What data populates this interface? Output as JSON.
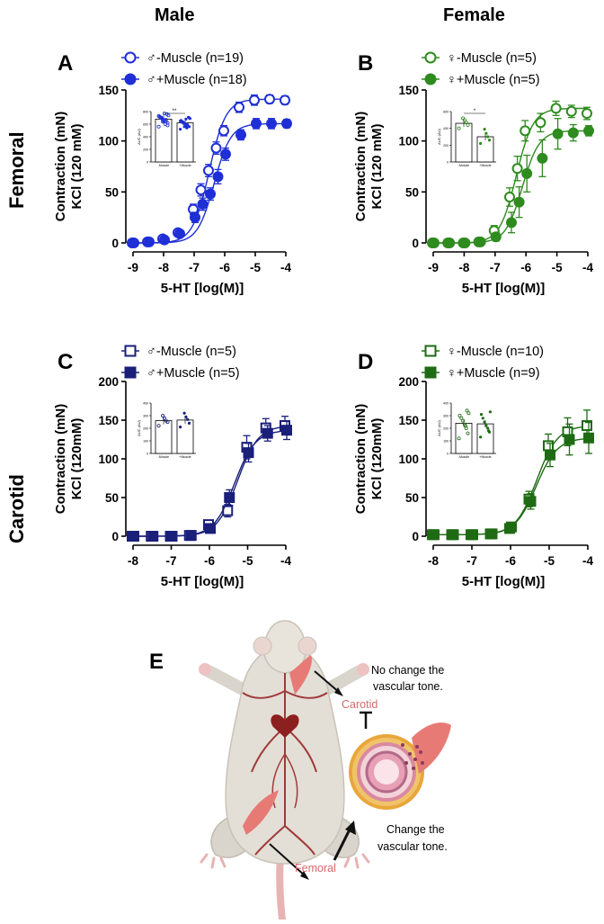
{
  "column_titles": {
    "male": "Male",
    "female": "Female"
  },
  "row_titles": {
    "femoral": "Femoral",
    "carotid": "Carotid"
  },
  "panel_E": {
    "letter": "E",
    "carotid_label": "Carotid",
    "femoral_label": "Femoral",
    "no_change_text_1": "No change the",
    "no_change_text_2": "vascular tone.",
    "change_text_1": "Change the",
    "change_text_2": "vascular tone."
  },
  "colors": {
    "male_femoral": "#1f2fd6",
    "female_femoral": "#2e8b1e",
    "male_carotid": "#1a1f7a",
    "female_carotid": "#1e6b14"
  },
  "chart_data": [
    {
      "id": "A",
      "letter": "A",
      "type": "line",
      "xlabel": "5-HT [log(M)]",
      "ylabel1": "Contraction (mN)",
      "ylabel2": "KCl (120 mM)",
      "xlim": [
        -9,
        -4
      ],
      "ylim": [
        0,
        150
      ],
      "xticks": [
        -9,
        -8,
        -7,
        -6,
        -5,
        -4
      ],
      "yticks": [
        0,
        50,
        100,
        150
      ],
      "color_key": "male_femoral",
      "marker": "circle",
      "x": [
        -9,
        -8.5,
        -8,
        -7.5,
        -7,
        -6.75,
        -6.5,
        -6.25,
        -6,
        -5.5,
        -5,
        -4.5,
        -4
      ],
      "series": [
        {
          "name": "♂-Muscle (n=19)",
          "filled": false,
          "values": [
            0,
            1,
            4,
            10,
            33,
            52,
            71,
            93,
            110,
            133,
            140,
            141,
            140
          ],
          "errors": [
            1,
            1,
            2,
            3,
            5,
            6,
            6,
            6,
            5,
            5,
            5,
            4,
            4
          ]
        },
        {
          "name": "♂+Muscle (n=18)",
          "filled": true,
          "values": [
            0,
            1,
            3,
            9,
            25,
            38,
            48,
            65,
            87,
            106,
            117,
            117,
            117
          ],
          "errors": [
            1,
            1,
            2,
            3,
            5,
            6,
            6,
            7,
            6,
            5,
            5,
            5,
            4
          ]
        }
      ],
      "inset": {
        "ylabel": "AUC (AU)",
        "yticks": [
          0,
          200,
          400,
          600,
          800
        ],
        "categories": [
          "-Muscle",
          "+Muscle"
        ],
        "values": [
          680,
          620
        ],
        "significance": "**",
        "points": [
          [
            560,
            620,
            640,
            660,
            680,
            700,
            720,
            740,
            760,
            600,
            650,
            690,
            710,
            730,
            580,
            670,
            770,
            640,
            705
          ],
          [
            520,
            560,
            580,
            600,
            620,
            640,
            660,
            690,
            710,
            540,
            570,
            610,
            630,
            650,
            700,
            590,
            680,
            560
          ]
        ]
      }
    },
    {
      "id": "B",
      "letter": "B",
      "type": "line",
      "xlabel": "5-HT [log(M)]",
      "ylabel1": "Contraction (mN)",
      "ylabel2": "KCl (120 mM)",
      "xlim": [
        -9,
        -4
      ],
      "ylim": [
        0,
        150
      ],
      "xticks": [
        -9,
        -8,
        -7,
        -6,
        -5,
        -4
      ],
      "yticks": [
        0,
        50,
        100,
        150
      ],
      "color_key": "female_femoral",
      "marker": "circle",
      "x": [
        -9,
        -8.5,
        -8,
        -7.5,
        -7,
        -6.5,
        -6.25,
        -6,
        -5.5,
        -5,
        -4.5,
        -4
      ],
      "series": [
        {
          "name": "♀-Muscle (n=5)",
          "filled": false,
          "values": [
            0,
            0,
            0,
            1,
            12,
            45,
            73,
            110,
            118,
            132,
            129,
            127
          ],
          "errors": [
            1,
            1,
            1,
            2,
            5,
            9,
            12,
            10,
            9,
            7,
            6,
            6
          ]
        },
        {
          "name": "♀+Muscle (n=5)",
          "filled": true,
          "values": [
            0,
            0,
            0,
            1,
            6,
            20,
            40,
            68,
            83,
            107,
            108,
            110
          ],
          "errors": [
            1,
            1,
            1,
            2,
            4,
            10,
            15,
            18,
            18,
            15,
            8,
            5
          ]
        }
      ],
      "inset": {
        "ylabel": "AUC (AU)",
        "yticks": [
          0,
          200,
          400,
          600
        ],
        "categories": [
          "-Muscle",
          "+Muscle"
        ],
        "values": [
          460,
          300
        ],
        "significance": "*",
        "points": [
          [
            400,
            440,
            470,
            500,
            520
          ],
          [
            220,
            260,
            300,
            340,
            390
          ]
        ]
      }
    },
    {
      "id": "C",
      "letter": "C",
      "type": "line",
      "xlabel": "5-HT [log(M)]",
      "ylabel1": "Contraction (mN)",
      "ylabel2": "KCl (120mM)",
      "xlim": [
        -8,
        -4
      ],
      "ylim": [
        0,
        200
      ],
      "xticks": [
        -8,
        -7,
        -6,
        -5,
        -4
      ],
      "yticks": [
        0,
        50,
        100,
        150,
        200
      ],
      "color_key": "male_carotid",
      "marker": "square",
      "x": [
        -8,
        -7.5,
        -7,
        -6.5,
        -6,
        -5.5,
        -5,
        -4.5,
        -4
      ],
      "series": [
        {
          "name": "♂-Muscle (n=5)",
          "filled": false,
          "values": [
            0,
            0,
            0,
            1,
            15,
            33,
            115,
            140,
            143
          ],
          "errors": [
            1,
            1,
            1,
            2,
            5,
            8,
            15,
            12,
            12
          ]
        },
        {
          "name": "♂+Muscle (n=5)",
          "filled": true,
          "values": [
            0,
            0,
            0,
            1,
            10,
            50,
            108,
            133,
            137
          ],
          "errors": [
            1,
            1,
            1,
            2,
            5,
            10,
            12,
            10,
            12
          ]
        }
      ],
      "inset": {
        "ylabel": "AUC (AU)",
        "yticks": [
          0,
          100,
          200,
          300,
          400
        ],
        "categories": [
          "-Muscle",
          "+Muscle"
        ],
        "values": [
          260,
          265
        ],
        "significance": "",
        "points": [
          [
            220,
            250,
            260,
            280,
            300
          ],
          [
            210,
            240,
            270,
            290,
            320
          ]
        ]
      }
    },
    {
      "id": "D",
      "letter": "D",
      "type": "line",
      "xlabel": "5-HT [log(M)]",
      "ylabel1": "Contraction (mN)",
      "ylabel2": "KCl (120mM)",
      "xlim": [
        -8,
        -4
      ],
      "ylim": [
        0,
        200
      ],
      "xticks": [
        -8,
        -7,
        -6,
        -5,
        -4
      ],
      "yticks": [
        0,
        50,
        100,
        150,
        200
      ],
      "color_key": "female_carotid",
      "marker": "square",
      "x": [
        -8,
        -7.5,
        -7,
        -6.5,
        -6,
        -5.5,
        -5,
        -4.5,
        -4
      ],
      "series": [
        {
          "name": "♀-Muscle (n=10)",
          "filled": false,
          "values": [
            2,
            2,
            2,
            3,
            10,
            48,
            117,
            135,
            143
          ],
          "errors": [
            2,
            2,
            2,
            2,
            5,
            10,
            15,
            18,
            20
          ]
        },
        {
          "name": "♀+Muscle (n=9)",
          "filled": true,
          "values": [
            2,
            2,
            2,
            3,
            12,
            45,
            105,
            125,
            127
          ],
          "errors": [
            2,
            2,
            2,
            2,
            5,
            10,
            15,
            20,
            20
          ]
        }
      ],
      "inset": {
        "ylabel": "AUC (AU)",
        "yticks": [
          0,
          100,
          200,
          300,
          400
        ],
        "categories": [
          "-Muscle",
          "+Muscle"
        ],
        "values": [
          240,
          235
        ],
        "significance": "",
        "points": [
          [
            120,
            160,
            200,
            230,
            260,
            280,
            300,
            320,
            340,
            220
          ],
          [
            130,
            170,
            200,
            220,
            250,
            280,
            310,
            330,
            180
          ]
        ]
      }
    }
  ]
}
